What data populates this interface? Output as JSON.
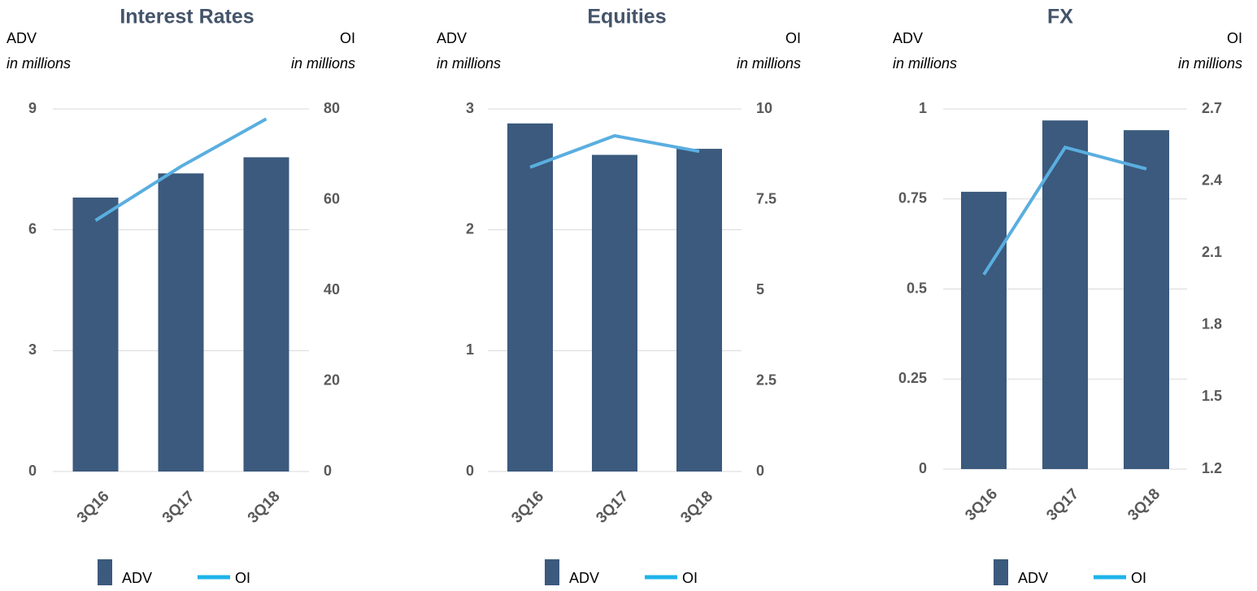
{
  "chart_data": [
    {
      "type": "combo",
      "title": "Interest Rates",
      "y_label": "ADV",
      "y_unit": "in millions",
      "y2_label": "OI",
      "y2_unit": "in millions",
      "categories": [
        "3Q16",
        "3Q17",
        "3Q18"
      ],
      "series": [
        {
          "name": "ADV",
          "type": "bar",
          "color": "#3b5a7d",
          "values": [
            6.8,
            7.4,
            7.8
          ]
        },
        {
          "name": "OI",
          "type": "line",
          "axis": "y2",
          "color": "#5aaee0",
          "values": [
            55.4,
            67.3,
            77.8
          ]
        }
      ],
      "ylim": [
        0,
        9
      ],
      "yticks": [
        0,
        3,
        6,
        9
      ],
      "y2lim": [
        0,
        80
      ],
      "y2ticks": [
        0,
        20,
        40,
        60,
        80
      ],
      "grid": true
    },
    {
      "type": "combo",
      "title": "Equities",
      "y_label": "ADV",
      "y_unit": "in millions",
      "y2_label": "OI",
      "y2_unit": "in millions",
      "categories": [
        "3Q16",
        "3Q17",
        "3Q18"
      ],
      "series": [
        {
          "name": "ADV",
          "type": "bar",
          "color": "#3b5a7d",
          "values": [
            2.88,
            2.62,
            2.67
          ]
        },
        {
          "name": "OI",
          "type": "line",
          "axis": "y2",
          "color": "#5aaee0",
          "values": [
            8.39,
            9.26,
            8.83
          ]
        }
      ],
      "ylim": [
        0,
        3
      ],
      "yticks": [
        0,
        1,
        2,
        3
      ],
      "y2lim": [
        0,
        10
      ],
      "y2ticks": [
        0,
        2.5,
        5,
        7.5,
        10
      ],
      "grid": true
    },
    {
      "type": "combo",
      "title": "FX",
      "y_label": "ADV",
      "y_unit": "in millions",
      "y2_label": "OI",
      "y2_unit": "in millions",
      "categories": [
        "3Q16",
        "3Q17",
        "3Q18"
      ],
      "series": [
        {
          "name": "ADV",
          "type": "bar",
          "color": "#3b5a7d",
          "values": [
            0.77,
            0.968,
            0.941
          ]
        },
        {
          "name": "OI",
          "type": "line",
          "axis": "y2",
          "color": "#5aaee0",
          "values": [
            2.01,
            2.54,
            2.45
          ]
        }
      ],
      "ylim": [
        0,
        1
      ],
      "yticks": [
        0,
        0.25,
        0.5,
        0.75,
        1
      ],
      "y2lim": [
        1.2,
        2.7
      ],
      "y2ticks": [
        1.2,
        1.5,
        1.8,
        2.1,
        2.4,
        2.7
      ],
      "grid": true
    }
  ]
}
